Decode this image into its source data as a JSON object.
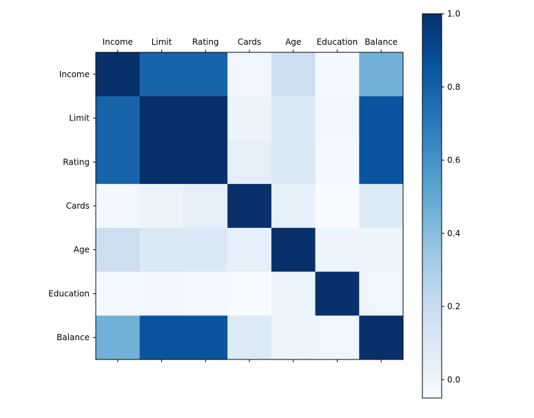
{
  "chart_data": {
    "type": "heatmap",
    "title": "",
    "xlabel": "",
    "ylabel": "",
    "x_labels": [
      "Income",
      "Limit",
      "Rating",
      "Cards",
      "Age",
      "Education",
      "Balance"
    ],
    "y_labels": [
      "Income",
      "Limit",
      "Rating",
      "Cards",
      "Age",
      "Education",
      "Balance"
    ],
    "x_tick_position": "top",
    "values": [
      [
        1.0,
        0.79,
        0.79,
        -0.02,
        0.18,
        -0.03,
        0.46
      ],
      [
        0.79,
        1.0,
        1.0,
        0.01,
        0.1,
        -0.02,
        0.86
      ],
      [
        0.79,
        1.0,
        1.0,
        0.05,
        0.1,
        -0.03,
        0.86
      ],
      [
        -0.02,
        0.01,
        0.05,
        1.0,
        0.04,
        -0.05,
        0.09
      ],
      [
        0.18,
        0.1,
        0.1,
        0.04,
        1.0,
        0.0,
        0.0
      ],
      [
        -0.03,
        -0.02,
        -0.03,
        -0.05,
        0.0,
        1.0,
        -0.01
      ],
      [
        0.46,
        0.86,
        0.86,
        0.09,
        0.0,
        -0.01,
        1.0
      ]
    ],
    "colormap": "Blues",
    "colorbar": {
      "vmin": -0.05,
      "vmax": 1.0,
      "ticks": [
        0.0,
        0.2,
        0.4,
        0.6,
        0.8,
        1.0
      ],
      "tick_labels": [
        "0.0",
        "0.2",
        "0.4",
        "0.6",
        "0.8",
        "1.0"
      ]
    },
    "grid": false
  }
}
